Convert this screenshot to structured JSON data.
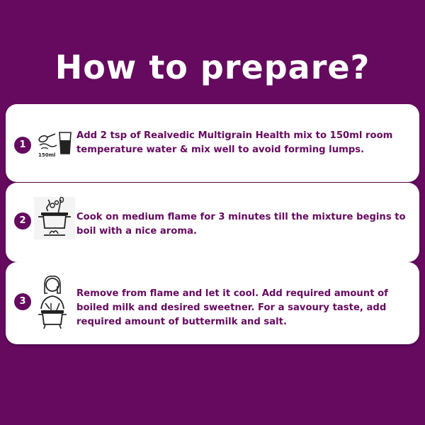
{
  "title": "How to prepare?",
  "steps": [
    {
      "number": "1",
      "icon": "mix-in-water-icon",
      "icon_label": "150ml",
      "text": "Add 2 tsp of Realvedic Multigrain Health mix to 150ml room temperature water & mix well to avoid forming lumps."
    },
    {
      "number": "2",
      "icon": "boiling-pot-icon",
      "text": "Cook on medium flame for 3 minutes till the mixture begins to boil with a nice aroma."
    },
    {
      "number": "3",
      "icon": "person-cooking-icon",
      "text": "Remove from flame and let it cool. Add required amount of boiled milk and desired sweetner. For a savoury taste, add required amount of buttermilk and salt."
    }
  ],
  "colors": {
    "background": "#650a5f",
    "card": "#ffffff",
    "accent": "#650a5f"
  }
}
